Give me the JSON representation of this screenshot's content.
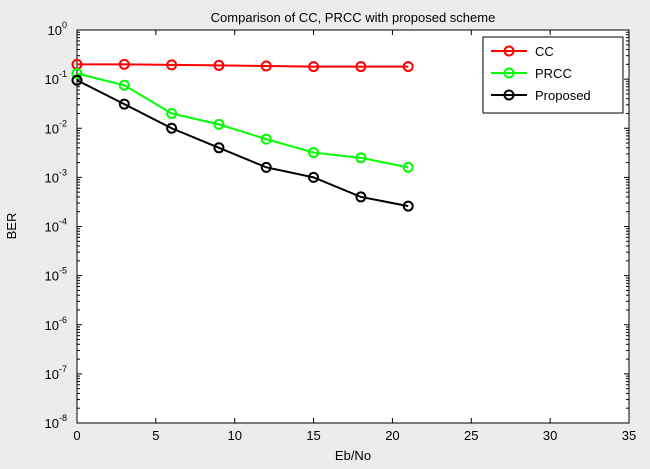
{
  "chart_data": {
    "type": "line",
    "title": "Comparison of CC, PRCC with proposed scheme",
    "xlabel": "Eb/No",
    "ylabel": "BER",
    "xlim": [
      0,
      35
    ],
    "ylim": [
      1e-08,
      1
    ],
    "yscale": "log",
    "grid": false,
    "legend_position": "top-right",
    "x_ticks": [
      {
        "value": 0,
        "label": "0"
      },
      {
        "value": 5,
        "label": "5"
      },
      {
        "value": 10,
        "label": "10"
      },
      {
        "value": 15,
        "label": "15"
      },
      {
        "value": 20,
        "label": "20"
      },
      {
        "value": 25,
        "label": "25"
      },
      {
        "value": 30,
        "label": "30"
      },
      {
        "value": 35,
        "label": "35"
      }
    ],
    "y_ticks": [
      {
        "value": 1e-08,
        "base": "10",
        "exp": "-8"
      },
      {
        "value": 1e-07,
        "base": "10",
        "exp": "-7"
      },
      {
        "value": 1e-06,
        "base": "10",
        "exp": "-6"
      },
      {
        "value": 1e-05,
        "base": "10",
        "exp": "-5"
      },
      {
        "value": 0.0001,
        "base": "10",
        "exp": "-4"
      },
      {
        "value": 0.001,
        "base": "10",
        "exp": "-3"
      },
      {
        "value": 0.01,
        "base": "10",
        "exp": "-2"
      },
      {
        "value": 0.1,
        "base": "10",
        "exp": "-1"
      },
      {
        "value": 1,
        "base": "10",
        "exp": "0"
      }
    ],
    "series": [
      {
        "name": "CC",
        "color": "#ff0000",
        "x": [
          0,
          3,
          6,
          9,
          12,
          15,
          18,
          21
        ],
        "y": [
          0.2,
          0.2,
          0.195,
          0.19,
          0.185,
          0.18,
          0.18,
          0.18
        ]
      },
      {
        "name": "PRCC",
        "color": "#00ff00",
        "x": [
          0,
          3,
          6,
          9,
          12,
          15,
          18,
          21
        ],
        "y": [
          0.13,
          0.075,
          0.02,
          0.012,
          0.006,
          0.0032,
          0.0025,
          0.0016
        ]
      },
      {
        "name": "Proposed",
        "color": "#000000",
        "x": [
          0,
          3,
          6,
          9,
          12,
          15,
          18,
          21
        ],
        "y": [
          0.095,
          0.031,
          0.01,
          0.004,
          0.0016,
          0.001,
          0.0004,
          0.00026
        ]
      }
    ]
  }
}
